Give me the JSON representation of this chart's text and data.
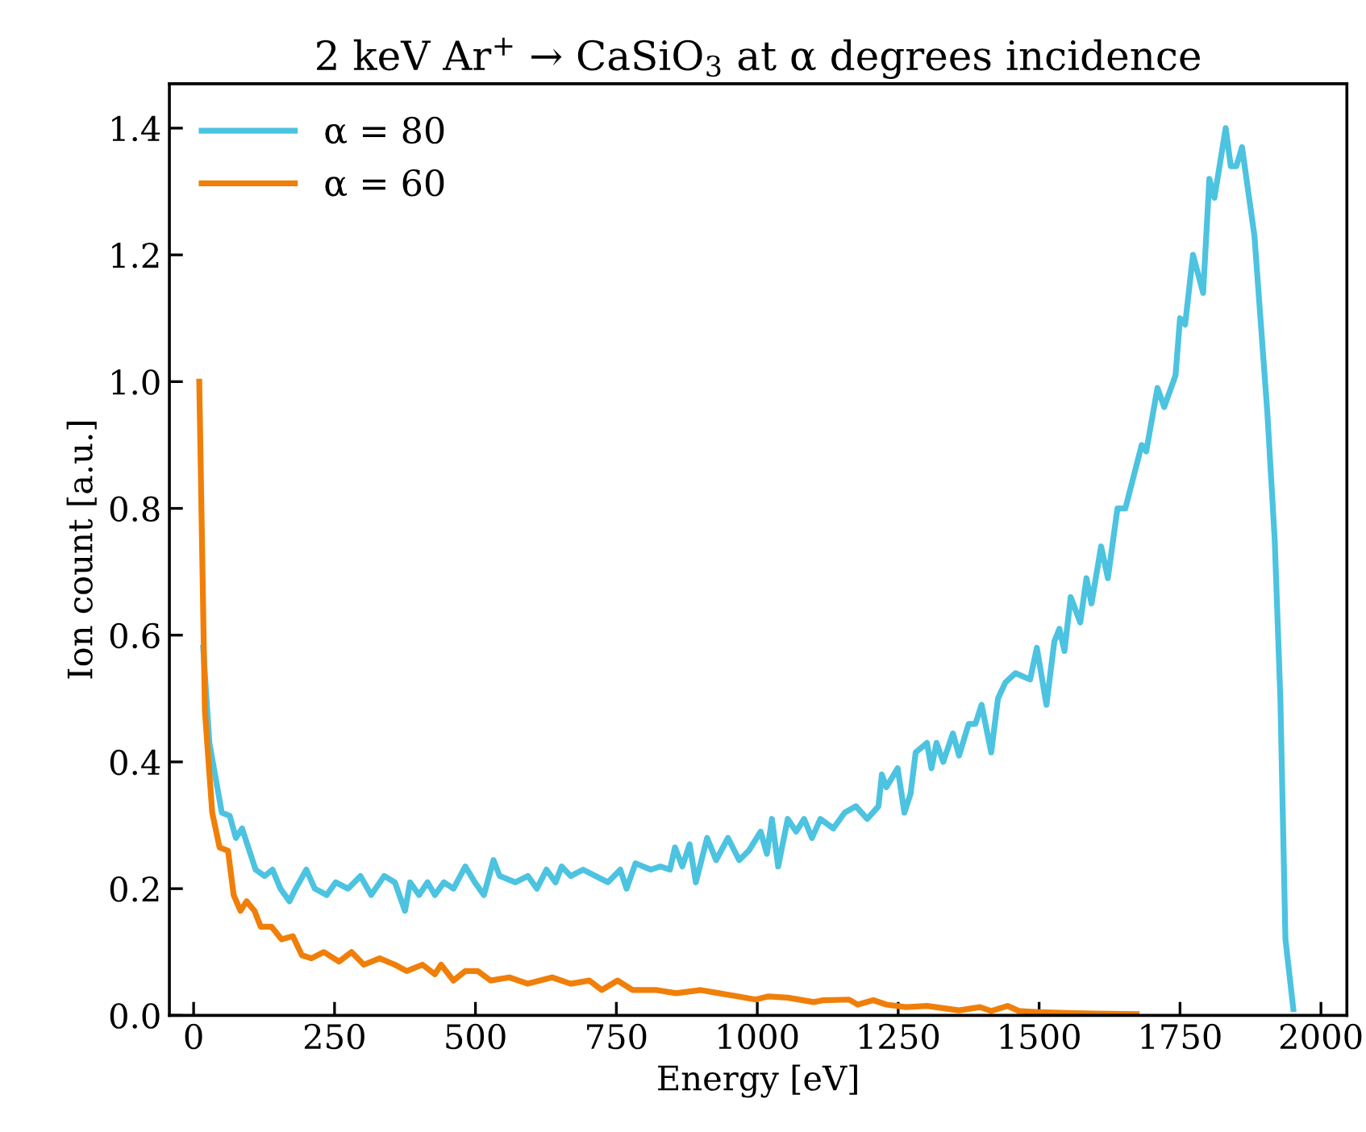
{
  "chart_data": {
    "type": "line",
    "title": "2 keV Ar$^{+}$ → CaSiO$_{3}$ at α degrees incidence",
    "xlabel": "Energy [eV]",
    "ylabel": "Ion count [a.u.]",
    "xlim": [
      -43,
      2046
    ],
    "ylim": [
      0,
      1.47
    ],
    "xticks": [
      0,
      250,
      500,
      750,
      1000,
      1250,
      1500,
      1750,
      2000
    ],
    "yticks": [
      {
        "value": 0,
        "label": "0.0"
      },
      {
        "value": 0.2,
        "label": "0.2"
      },
      {
        "value": 0.4,
        "label": "0.4"
      },
      {
        "value": 0.6,
        "label": "0.6"
      },
      {
        "value": 0.8,
        "label": "0.8"
      },
      {
        "value": 1.0,
        "label": "1.0"
      },
      {
        "value": 1.2,
        "label": "1.2"
      },
      {
        "value": 1.4,
        "label": "1.4"
      }
    ],
    "grid": false,
    "legend": "top left",
    "marker": "none",
    "line_style": "solid",
    "series": [
      {
        "name": "α = 80",
        "color": "#4cc3e0",
        "x": [
          17,
          28,
          50,
          64,
          75,
          86,
          110,
          126,
          140,
          154,
          170,
          181,
          200,
          215,
          236,
          252,
          274,
          296,
          315,
          338,
          357,
          375,
          384,
          400,
          415,
          428,
          444,
          461,
          482,
          499,
          515,
          532,
          543,
          571,
          593,
          609,
          626,
          642,
          653,
          669,
          691,
          713,
          735,
          757,
          768,
          784,
          811,
          828,
          845,
          854,
          867,
          880,
          891,
          911,
          927,
          948,
          968,
          985,
          1006,
          1017,
          1026,
          1037,
          1054,
          1069,
          1083,
          1097,
          1112,
          1135,
          1155,
          1175,
          1195,
          1215,
          1221,
          1229,
          1249,
          1261,
          1272,
          1281,
          1301,
          1309,
          1318,
          1330,
          1347,
          1358,
          1375,
          1387,
          1398,
          1415,
          1427,
          1440,
          1458,
          1484,
          1496,
          1513,
          1527,
          1536,
          1545,
          1556,
          1573,
          1584,
          1593,
          1610,
          1622,
          1639,
          1653,
          1682,
          1690,
          1710,
          1722,
          1742,
          1750,
          1759,
          1773,
          1791,
          1802,
          1811,
          1831,
          1840,
          1850,
          1860,
          1882,
          1905,
          1918,
          1928,
          1937,
          1951
        ],
        "values": [
          0.58,
          0.43,
          0.32,
          0.315,
          0.28,
          0.295,
          0.23,
          0.22,
          0.23,
          0.2,
          0.18,
          0.2,
          0.23,
          0.2,
          0.19,
          0.21,
          0.2,
          0.22,
          0.19,
          0.22,
          0.21,
          0.165,
          0.21,
          0.19,
          0.21,
          0.19,
          0.21,
          0.2,
          0.235,
          0.21,
          0.19,
          0.245,
          0.22,
          0.21,
          0.22,
          0.2,
          0.23,
          0.21,
          0.235,
          0.22,
          0.23,
          0.22,
          0.21,
          0.23,
          0.2,
          0.24,
          0.23,
          0.235,
          0.23,
          0.265,
          0.235,
          0.27,
          0.21,
          0.28,
          0.245,
          0.28,
          0.245,
          0.26,
          0.29,
          0.255,
          0.31,
          0.235,
          0.31,
          0.29,
          0.31,
          0.28,
          0.31,
          0.295,
          0.32,
          0.33,
          0.31,
          0.33,
          0.38,
          0.36,
          0.39,
          0.32,
          0.35,
          0.415,
          0.43,
          0.39,
          0.43,
          0.4,
          0.445,
          0.41,
          0.46,
          0.46,
          0.49,
          0.415,
          0.5,
          0.525,
          0.54,
          0.53,
          0.58,
          0.49,
          0.59,
          0.61,
          0.575,
          0.66,
          0.62,
          0.69,
          0.65,
          0.74,
          0.69,
          0.8,
          0.8,
          0.9,
          0.89,
          0.99,
          0.96,
          1.01,
          1.1,
          1.09,
          1.2,
          1.14,
          1.32,
          1.29,
          1.4,
          1.34,
          1.34,
          1.37,
          1.23,
          0.95,
          0.75,
          0.5,
          0.12,
          0.01
        ]
      },
      {
        "name": "α = 60",
        "color": "#f07f09",
        "x": [
          10,
          20,
          33,
          46,
          61,
          71,
          83,
          94,
          108,
          119,
          138,
          156,
          176,
          192,
          209,
          231,
          258,
          280,
          302,
          330,
          357,
          378,
          406,
          428,
          439,
          461,
          482,
          504,
          527,
          560,
          593,
          636,
          669,
          702,
          724,
          752,
          779,
          822,
          856,
          900,
          932,
          965,
          997,
          1020,
          1054,
          1100,
          1117,
          1163,
          1178,
          1206,
          1229,
          1264,
          1301,
          1358,
          1395,
          1415,
          1444,
          1464,
          1501,
          1549,
          1597,
          1673
        ],
        "values": [
          1.0,
          0.48,
          0.32,
          0.265,
          0.26,
          0.19,
          0.165,
          0.18,
          0.165,
          0.14,
          0.14,
          0.12,
          0.125,
          0.095,
          0.09,
          0.1,
          0.085,
          0.1,
          0.08,
          0.09,
          0.08,
          0.07,
          0.08,
          0.065,
          0.08,
          0.055,
          0.07,
          0.07,
          0.055,
          0.06,
          0.05,
          0.06,
          0.05,
          0.055,
          0.04,
          0.055,
          0.04,
          0.04,
          0.035,
          0.04,
          0.035,
          0.03,
          0.025,
          0.03,
          0.028,
          0.021,
          0.024,
          0.025,
          0.017,
          0.024,
          0.017,
          0.013,
          0.015,
          0.008,
          0.013,
          0.007,
          0.015,
          0.007,
          0.005,
          0.004,
          0.003,
          0.002
        ]
      }
    ]
  }
}
